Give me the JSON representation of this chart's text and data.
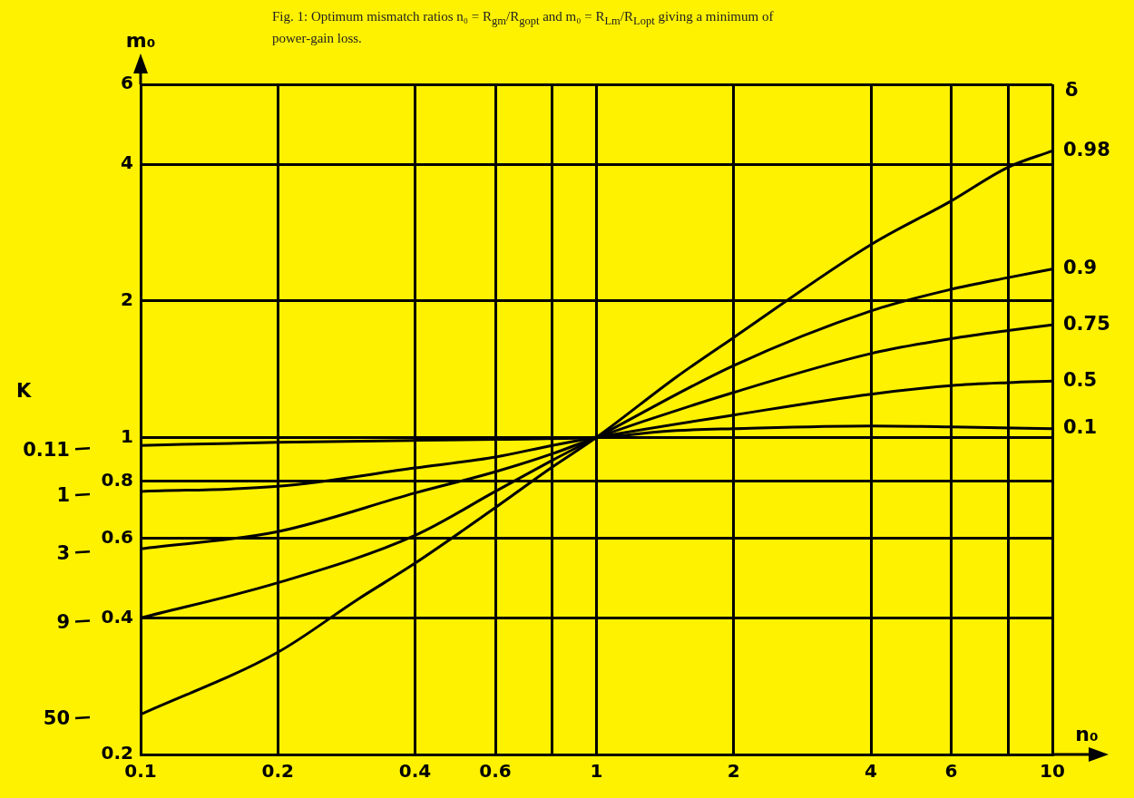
{
  "chart_data": {
    "type": "line",
    "title": "Fig. 1: Optimum mismatch ratios n₀ = R$_{gm}$/R$_{gopt}$ and m₀ = R$_{Lm}$/R$_{Lopt}$ giving a minimum of power-gain loss.",
    "xlabel": "n₀",
    "ylabel": "m₀",
    "log": "xy",
    "grid": true,
    "legend": false,
    "marker": "none",
    "line_style": "solid",
    "xlim": [
      0.1,
      10
    ],
    "xticks": [
      0.1,
      0.2,
      0.4,
      0.6,
      {
        "value": 0.8,
        "label": null
      },
      1,
      2,
      4,
      6,
      {
        "value": 8,
        "label": null
      },
      10
    ],
    "ylim": [
      0.2,
      6
    ],
    "yticks": [
      0.2,
      0.4,
      0.6,
      0.8,
      1,
      2,
      4,
      6
    ],
    "series": [
      {
        "color": "#000000",
        "x": [
          0.1,
          0.2,
          0.4,
          0.6,
          1,
          1.5,
          2,
          4,
          6,
          10
        ],
        "values": [
          0.96,
          0.975,
          0.985,
          0.99,
          1,
          1.035,
          1.045,
          1.06,
          1.055,
          1.045
        ]
      },
      {
        "color": "#000000",
        "x": [
          0.1,
          0.2,
          0.4,
          0.6,
          0.8,
          1,
          2,
          4,
          6,
          8,
          10
        ],
        "values": [
          0.76,
          0.78,
          0.856,
          0.905,
          0.96,
          1,
          1.12,
          1.245,
          1.3,
          1.32,
          1.33
        ]
      },
      {
        "color": "#000000",
        "x": [
          0.1,
          0.2,
          0.4,
          0.6,
          0.8,
          1,
          2,
          4,
          6,
          8,
          10
        ],
        "values": [
          0.568,
          0.62,
          0.754,
          0.84,
          0.92,
          1,
          1.256,
          1.53,
          1.65,
          1.72,
          1.77
        ]
      },
      {
        "color": "#000000",
        "x": [
          0.1,
          0.2,
          0.4,
          0.6,
          0.8,
          1,
          2,
          4,
          6,
          8,
          10
        ],
        "values": [
          0.4,
          0.478,
          0.608,
          0.76,
          0.89,
          1,
          1.44,
          1.9,
          2.12,
          2.25,
          2.35
        ]
      },
      {
        "color": "#000000",
        "x": [
          0.1,
          0.2,
          0.3,
          0.4,
          0.6,
          0.8,
          1,
          1.5,
          2,
          4,
          6,
          8,
          10
        ],
        "values": [
          0.245,
          0.336,
          0.44,
          0.528,
          0.7,
          0.86,
          1,
          1.36,
          1.66,
          2.66,
          3.32,
          3.94,
          4.28
        ]
      }
    ],
    "annotations": [
      "K",
      "δ",
      "0.11",
      "1",
      "3",
      "9",
      "50",
      "0.1",
      "0.5",
      "0.75",
      "0.9",
      "0.98"
    ]
  }
}
